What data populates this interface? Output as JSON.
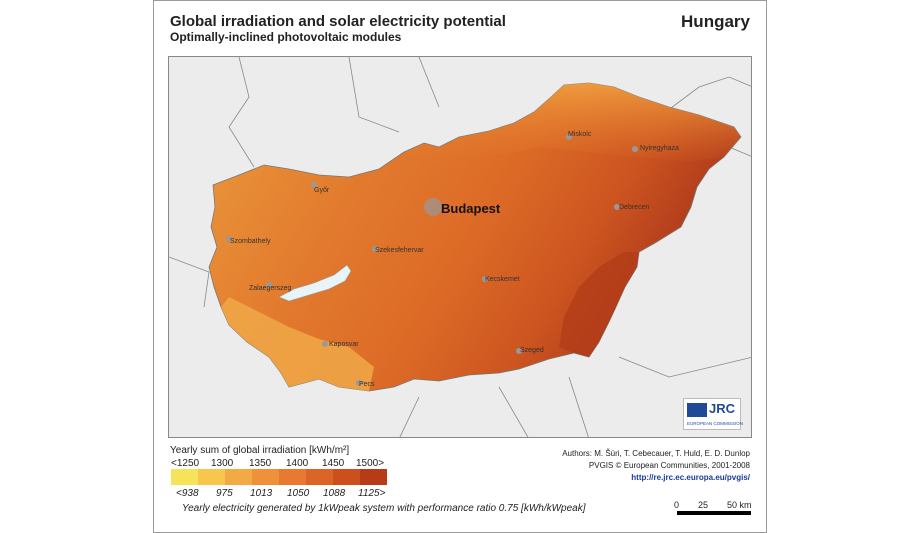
{
  "header": {
    "title": "Global irradiation and solar electricity potential",
    "subtitle": "Optimally-inclined photovoltaic modules",
    "country": "Hungary"
  },
  "map": {
    "capital": "Budapest",
    "cities": [
      {
        "name": "Miskolc"
      },
      {
        "name": "Nyiregyhaza"
      },
      {
        "name": "Győr"
      },
      {
        "name": "Debrecen"
      },
      {
        "name": "Szombathely"
      },
      {
        "name": "Szekesfehervar"
      },
      {
        "name": "Zalaegerszeg"
      },
      {
        "name": "Kecskemet"
      },
      {
        "name": "Kaposvar"
      },
      {
        "name": "Szeged"
      },
      {
        "name": "Pecs"
      }
    ],
    "colors": {
      "background": "#ececec",
      "lake": "#e8f4f8",
      "zones": [
        "#f7c35a",
        "#f2a84a",
        "#ec8f3a",
        "#e47a2e",
        "#d96524",
        "#cc5320",
        "#b8421b",
        "#a2321a"
      ]
    }
  },
  "logo": {
    "name": "JRC",
    "subtitle": "EUROPEAN COMMISSION"
  },
  "legend": {
    "title": "Yearly sum of global irradiation [kWh/m²]",
    "irradiation_ticks": [
      "<1250",
      "1300",
      "1350",
      "1400",
      "1450",
      "1500>"
    ],
    "electricity_ticks": [
      "<938",
      "975",
      "1013",
      "1050",
      "1088",
      "1125>"
    ],
    "colors": [
      "#f7e35a",
      "#f6c64d",
      "#f2aa44",
      "#ee913a",
      "#e77a30",
      "#dc6426",
      "#cd4f1e",
      "#b83b18"
    ],
    "footnote": "Yearly electricity generated by 1kWpeak system with performance ratio 0.75 [kWh/kWpeak]"
  },
  "credits": {
    "authors": "Authors: M. Šúri, T. Cebecauer, T. Huld, E. D. Dunlop",
    "copyright": "PVGIS © European Communities, 2001-2008",
    "url": "http://re.jrc.ec.europa.eu/pvgis/"
  },
  "scale": {
    "labels": [
      "0",
      "25",
      "50 km"
    ]
  }
}
